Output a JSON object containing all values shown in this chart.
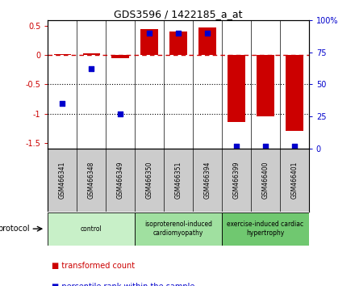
{
  "title": "GDS3596 / 1422185_a_at",
  "samples": [
    "GSM466341",
    "GSM466348",
    "GSM466349",
    "GSM466350",
    "GSM466351",
    "GSM466394",
    "GSM466399",
    "GSM466400",
    "GSM466401"
  ],
  "transformed_count": [
    0.02,
    0.03,
    -0.05,
    0.45,
    0.4,
    0.47,
    -1.15,
    -1.05,
    -1.3
  ],
  "percentile_rank": [
    35,
    62,
    27,
    90,
    90,
    90,
    2,
    2,
    2
  ],
  "groups": [
    {
      "label": "control",
      "start": 0,
      "end": 3,
      "color": "#c8f0c8"
    },
    {
      "label": "isoproterenol-induced\ncardiomyopathy",
      "start": 3,
      "end": 6,
      "color": "#a0e0a0"
    },
    {
      "label": "exercise-induced cardiac\nhypertrophy",
      "start": 6,
      "end": 9,
      "color": "#70c870"
    }
  ],
  "bar_color": "#cc0000",
  "scatter_color": "#0000cc",
  "ylim_left": [
    -1.6,
    0.6
  ],
  "ylim_right": [
    0,
    100
  ],
  "yticks_left": [
    -1.5,
    -1.0,
    -0.5,
    0.0,
    0.5
  ],
  "yticks_right": [
    0,
    25,
    50,
    75,
    100
  ],
  "hline_y": 0,
  "dotted_hlines": [
    -0.5,
    -1.0
  ],
  "bar_width": 0.6,
  "background_color": "#ffffff"
}
